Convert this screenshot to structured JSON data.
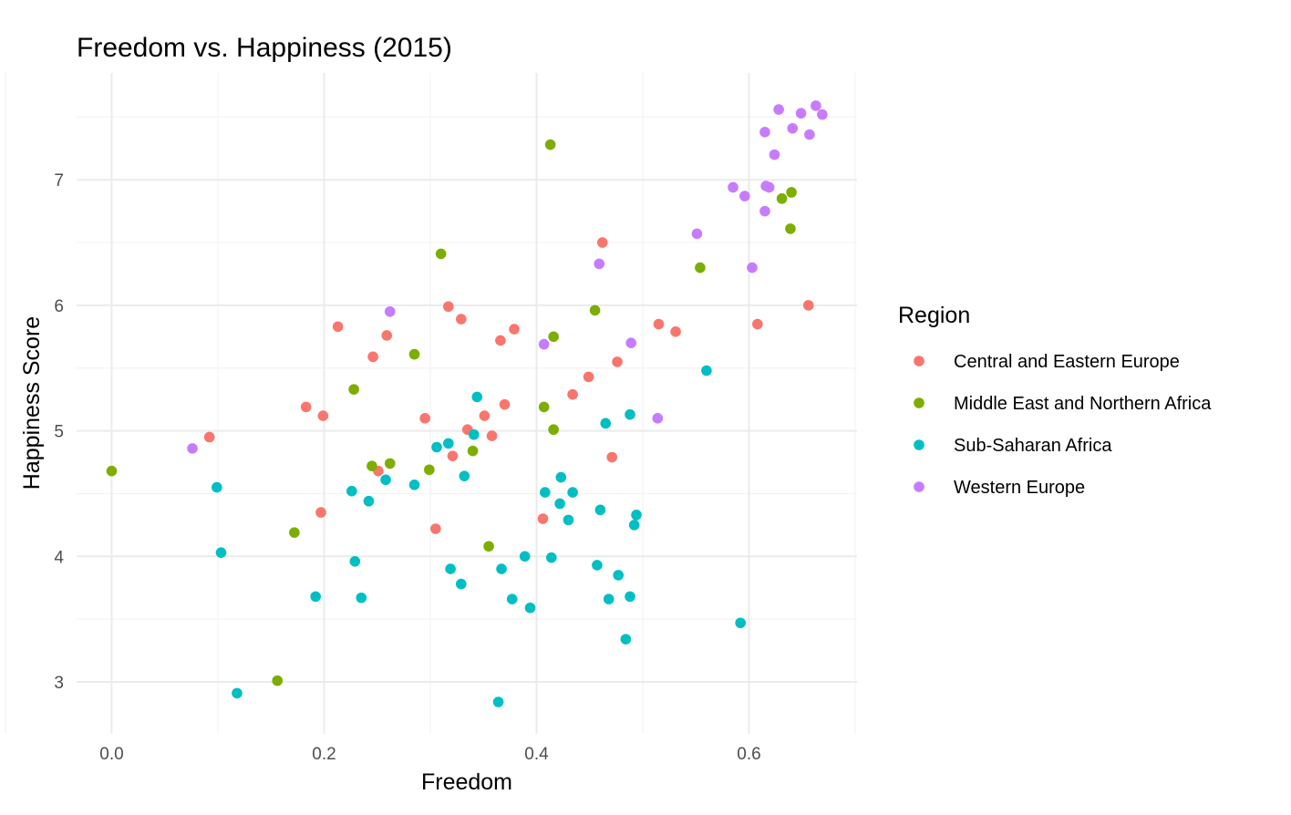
{
  "chart_data": {
    "type": "scatter",
    "title": "Freedom vs. Happiness (2015)",
    "xlabel": "Freedom",
    "ylabel": "Happiness Score",
    "xlim": [
      -0.03,
      0.7
    ],
    "ylim": [
      2.75,
      7.68
    ],
    "x_ticks": [
      0.0,
      0.2,
      0.4,
      0.6
    ],
    "x_tick_labels": [
      "0.0",
      "0.2",
      "0.4",
      "0.6"
    ],
    "y_ticks": [
      3,
      4,
      5,
      6,
      7
    ],
    "y_tick_labels": [
      "3",
      "4",
      "5",
      "6",
      "7"
    ],
    "grid": true,
    "legend": {
      "title": "Region",
      "position": "right"
    },
    "series": [
      {
        "name": "Central and Eastern Europe",
        "color": "#F8766D",
        "points": [
          [
            0.092,
            4.95
          ],
          [
            0.183,
            5.19
          ],
          [
            0.199,
            5.12
          ],
          [
            0.197,
            4.35
          ],
          [
            0.213,
            5.83
          ],
          [
            0.246,
            5.59
          ],
          [
            0.251,
            4.68
          ],
          [
            0.259,
            5.76
          ],
          [
            0.295,
            5.1
          ],
          [
            0.305,
            4.22
          ],
          [
            0.317,
            5.99
          ],
          [
            0.321,
            4.8
          ],
          [
            0.329,
            5.89
          ],
          [
            0.335,
            5.01
          ],
          [
            0.351,
            5.12
          ],
          [
            0.358,
            4.96
          ],
          [
            0.366,
            5.72
          ],
          [
            0.37,
            5.21
          ],
          [
            0.379,
            5.81
          ],
          [
            0.406,
            4.3
          ],
          [
            0.434,
            5.29
          ],
          [
            0.449,
            5.43
          ],
          [
            0.462,
            6.5
          ],
          [
            0.471,
            4.79
          ],
          [
            0.476,
            5.55
          ],
          [
            0.515,
            5.85
          ],
          [
            0.531,
            5.79
          ],
          [
            0.608,
            5.85
          ],
          [
            0.656,
            6.0
          ]
        ]
      },
      {
        "name": "Middle East and Northern Africa",
        "color": "#7CAE00",
        "points": [
          [
            0.0,
            4.68
          ],
          [
            0.156,
            3.01
          ],
          [
            0.172,
            4.19
          ],
          [
            0.228,
            5.33
          ],
          [
            0.245,
            4.72
          ],
          [
            0.262,
            4.74
          ],
          [
            0.285,
            5.61
          ],
          [
            0.299,
            4.69
          ],
          [
            0.31,
            6.41
          ],
          [
            0.34,
            4.84
          ],
          [
            0.355,
            4.08
          ],
          [
            0.407,
            5.19
          ],
          [
            0.413,
            7.28
          ],
          [
            0.416,
            5.75
          ],
          [
            0.416,
            5.01
          ],
          [
            0.455,
            5.96
          ],
          [
            0.554,
            6.3
          ],
          [
            0.631,
            6.85
          ],
          [
            0.639,
            6.61
          ],
          [
            0.64,
            6.9
          ]
        ]
      },
      {
        "name": "Sub-Saharan Africa",
        "color": "#00BFC4",
        "points": [
          [
            0.099,
            4.55
          ],
          [
            0.103,
            4.03
          ],
          [
            0.118,
            2.91
          ],
          [
            0.192,
            3.68
          ],
          [
            0.226,
            4.52
          ],
          [
            0.229,
            3.96
          ],
          [
            0.235,
            3.67
          ],
          [
            0.242,
            4.44
          ],
          [
            0.258,
            4.61
          ],
          [
            0.285,
            4.57
          ],
          [
            0.306,
            4.87
          ],
          [
            0.317,
            4.9
          ],
          [
            0.319,
            3.9
          ],
          [
            0.329,
            3.78
          ],
          [
            0.332,
            4.64
          ],
          [
            0.341,
            4.97
          ],
          [
            0.344,
            5.27
          ],
          [
            0.364,
            2.84
          ],
          [
            0.367,
            3.9
          ],
          [
            0.377,
            3.66
          ],
          [
            0.389,
            4.0
          ],
          [
            0.394,
            3.59
          ],
          [
            0.408,
            4.51
          ],
          [
            0.414,
            3.99
          ],
          [
            0.422,
            4.42
          ],
          [
            0.423,
            4.63
          ],
          [
            0.43,
            4.29
          ],
          [
            0.434,
            4.51
          ],
          [
            0.457,
            3.93
          ],
          [
            0.46,
            4.37
          ],
          [
            0.465,
            5.06
          ],
          [
            0.468,
            3.66
          ],
          [
            0.477,
            3.85
          ],
          [
            0.484,
            3.34
          ],
          [
            0.488,
            5.13
          ],
          [
            0.488,
            3.68
          ],
          [
            0.492,
            4.25
          ],
          [
            0.494,
            4.33
          ],
          [
            0.56,
            5.48
          ],
          [
            0.592,
            3.47
          ]
        ]
      },
      {
        "name": "Western Europe",
        "color": "#C77CFF",
        "points": [
          [
            0.076,
            4.86
          ],
          [
            0.262,
            5.95
          ],
          [
            0.407,
            5.69
          ],
          [
            0.459,
            6.33
          ],
          [
            0.489,
            5.7
          ],
          [
            0.514,
            5.1
          ],
          [
            0.551,
            6.57
          ],
          [
            0.585,
            6.94
          ],
          [
            0.596,
            6.87
          ],
          [
            0.603,
            6.3
          ],
          [
            0.615,
            7.38
          ],
          [
            0.615,
            6.75
          ],
          [
            0.616,
            6.95
          ],
          [
            0.619,
            6.94
          ],
          [
            0.624,
            7.2
          ],
          [
            0.628,
            7.56
          ],
          [
            0.641,
            7.41
          ],
          [
            0.649,
            7.53
          ],
          [
            0.657,
            7.36
          ],
          [
            0.663,
            7.59
          ],
          [
            0.669,
            7.52
          ]
        ]
      }
    ]
  }
}
